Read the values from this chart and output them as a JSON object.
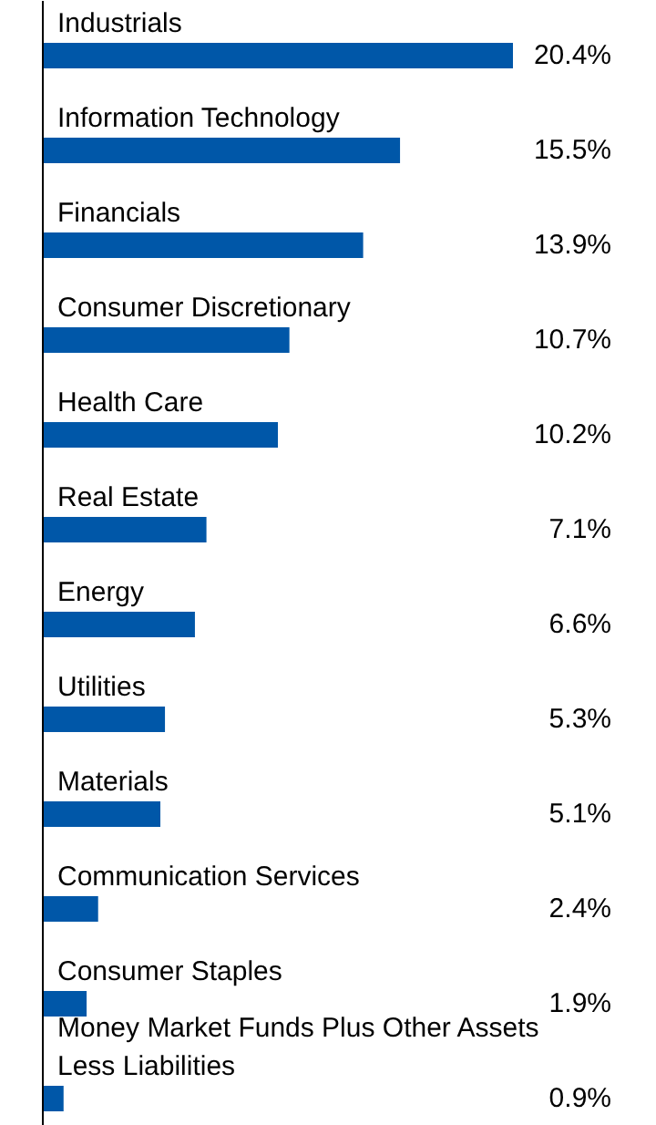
{
  "chart_data": {
    "type": "bar",
    "orientation": "horizontal",
    "color": "#0057a8",
    "categories": [
      "Industrials",
      "Information Technology",
      "Financials",
      "Consumer Discretionary",
      "Health Care",
      "Real Estate",
      "Energy",
      "Utilities",
      "Materials",
      "Communication Services",
      "Consumer Staples",
      "Money Market Funds Plus Other Assets Less Liabilities"
    ],
    "values": [
      20.4,
      15.5,
      13.9,
      10.7,
      10.2,
      7.1,
      6.6,
      5.3,
      5.1,
      2.4,
      1.9,
      0.9
    ],
    "value_labels": [
      "20.4%",
      "15.5%",
      "13.9%",
      "10.7%",
      "10.2%",
      "7.1%",
      "6.6%",
      "5.3%",
      "5.1%",
      "2.4%",
      "1.9%",
      "0.9%"
    ]
  }
}
